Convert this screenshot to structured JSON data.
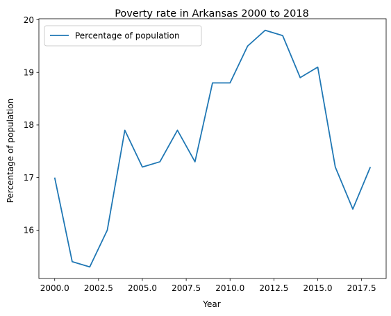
{
  "chart_data": {
    "type": "line",
    "title": "Poverty rate in Arkansas 2000 to 2018",
    "xlabel": "Year",
    "ylabel": "Percentage of population",
    "xlim": [
      1999.1,
      2018.9
    ],
    "ylim": [
      15.08,
      20.02
    ],
    "xticks": [
      2000.0,
      2002.5,
      2005.0,
      2007.5,
      2010.0,
      2012.5,
      2015.0,
      2017.5
    ],
    "xtick_labels": [
      "2000.0",
      "2002.5",
      "2005.0",
      "2007.5",
      "2010.0",
      "2012.5",
      "2015.0",
      "2017.5"
    ],
    "yticks": [
      16,
      17,
      18,
      19,
      20
    ],
    "ytick_labels": [
      "16",
      "17",
      "18",
      "19",
      "20"
    ],
    "grid": false,
    "legend": {
      "placement": "top-left"
    },
    "series": [
      {
        "name": "Percentage of population",
        "color": "#1f77b4",
        "x": [
          2000,
          2001,
          2002,
          2003,
          2004,
          2005,
          2006,
          2007,
          2008,
          2009,
          2010,
          2011,
          2012,
          2013,
          2014,
          2015,
          2016,
          2017,
          2018
        ],
        "values": [
          17.0,
          15.4,
          15.3,
          16.0,
          17.9,
          17.2,
          17.3,
          17.9,
          17.3,
          18.8,
          18.8,
          19.5,
          19.8,
          19.7,
          18.9,
          19.1,
          17.2,
          16.4,
          17.2
        ]
      }
    ]
  }
}
